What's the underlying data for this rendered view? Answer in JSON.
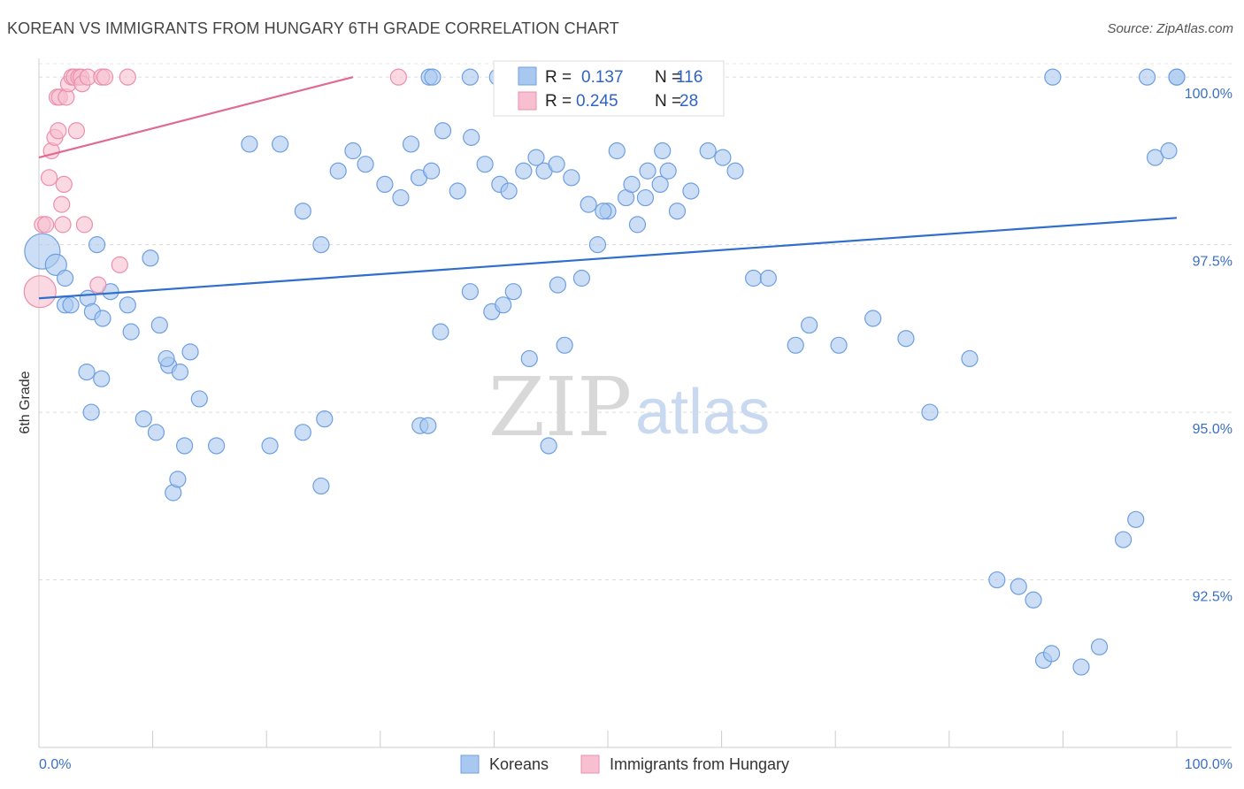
{
  "header": {
    "title": "KOREAN VS IMMIGRANTS FROM HUNGARY 6TH GRADE CORRELATION CHART",
    "source": "Source: ZipAtlas.com"
  },
  "watermark": {
    "zip": "ZIP",
    "atlas": "atlas"
  },
  "stats": {
    "r_label": "R =",
    "n_label": "N =",
    "rows": [
      {
        "r": "0.137",
        "n": "116"
      },
      {
        "r": "0.245",
        "n": "28"
      }
    ]
  },
  "chart_data": {
    "type": "scatter",
    "title": "KOREAN VS IMMIGRANTS FROM HUNGARY 6TH GRADE CORRELATION CHART",
    "ylabel": "6th Grade",
    "xlim": [
      0,
      100
    ],
    "ylim": [
      90.2,
      100.5
    ],
    "x_tick_labels": [
      "0.0%",
      "100.0%"
    ],
    "y_ticks": [
      92.5,
      95.0,
      97.5,
      100.0
    ],
    "y_tick_labels": [
      "92.5%",
      "95.0%",
      "97.5%",
      "100.0%"
    ],
    "grid": "horizontal dashed",
    "legend_position": "bottom-center",
    "series": [
      {
        "name": "Koreans",
        "color": "#a9c8f0",
        "stroke": "#6f9fe0",
        "trend_color": "#2f6fcb",
        "trend": [
          [
            0,
            96.7
          ],
          [
            100,
            97.9
          ]
        ],
        "points": [
          [
            0.3,
            97.4
          ],
          [
            1.5,
            97.2
          ],
          [
            2.3,
            97.0
          ],
          [
            2.3,
            96.6
          ],
          [
            2.8,
            96.6
          ],
          [
            4.3,
            96.7
          ],
          [
            4.7,
            96.5
          ],
          [
            5.6,
            96.4
          ],
          [
            5.1,
            97.5
          ],
          [
            6.3,
            96.8
          ],
          [
            7.8,
            96.6
          ],
          [
            8.1,
            96.2
          ],
          [
            9.8,
            97.3
          ],
          [
            10.6,
            96.3
          ],
          [
            11.4,
            95.7
          ],
          [
            11.2,
            95.8
          ],
          [
            12.4,
            95.6
          ],
          [
            13.3,
            95.9
          ],
          [
            4.2,
            95.6
          ],
          [
            5.5,
            95.5
          ],
          [
            4.6,
            95.0
          ],
          [
            9.2,
            94.9
          ],
          [
            10.3,
            94.7
          ],
          [
            12.8,
            94.5
          ],
          [
            11.8,
            93.8
          ],
          [
            12.2,
            94.0
          ],
          [
            14.1,
            95.2
          ],
          [
            15.6,
            94.5
          ],
          [
            20.3,
            94.5
          ],
          [
            23.2,
            94.7
          ],
          [
            24.8,
            93.9
          ],
          [
            25.1,
            94.9
          ],
          [
            33.5,
            94.8
          ],
          [
            34.2,
            94.8
          ],
          [
            35.3,
            96.2
          ],
          [
            37.9,
            96.8
          ],
          [
            39.8,
            96.5
          ],
          [
            40.8,
            96.6
          ],
          [
            41.7,
            96.8
          ],
          [
            43.1,
            95.8
          ],
          [
            44.8,
            94.5
          ],
          [
            45.6,
            96.9
          ],
          [
            46.2,
            96.0
          ],
          [
            47.7,
            97.0
          ],
          [
            49.1,
            97.5
          ],
          [
            50.0,
            98.0
          ],
          [
            51.6,
            98.2
          ],
          [
            52.6,
            97.8
          ],
          [
            53.3,
            98.2
          ],
          [
            54.6,
            98.4
          ],
          [
            55.3,
            98.6
          ],
          [
            56.1,
            98.0
          ],
          [
            57.3,
            98.3
          ],
          [
            58.8,
            98.9
          ],
          [
            60.1,
            98.8
          ],
          [
            61.2,
            98.6
          ],
          [
            62.8,
            97.0
          ],
          [
            64.1,
            97.0
          ],
          [
            66.5,
            96.0
          ],
          [
            67.7,
            96.3
          ],
          [
            70.3,
            96.0
          ],
          [
            73.3,
            96.4
          ],
          [
            76.2,
            96.1
          ],
          [
            78.3,
            95.0
          ],
          [
            81.8,
            95.8
          ],
          [
            84.2,
            92.5
          ],
          [
            86.1,
            92.4
          ],
          [
            87.4,
            92.2
          ],
          [
            88.3,
            91.3
          ],
          [
            89.0,
            91.4
          ],
          [
            91.6,
            91.2
          ],
          [
            93.2,
            91.5
          ],
          [
            95.3,
            93.1
          ],
          [
            96.4,
            93.4
          ],
          [
            98.1,
            98.8
          ],
          [
            99.3,
            98.9
          ],
          [
            100.0,
            100.0
          ],
          [
            18.5,
            99.0
          ],
          [
            21.2,
            99.0
          ],
          [
            23.2,
            98.0
          ],
          [
            24.8,
            97.5
          ],
          [
            26.3,
            98.6
          ],
          [
            27.6,
            98.9
          ],
          [
            28.7,
            98.7
          ],
          [
            30.4,
            98.4
          ],
          [
            31.8,
            98.2
          ],
          [
            32.7,
            99.0
          ],
          [
            33.4,
            98.5
          ],
          [
            34.5,
            98.6
          ],
          [
            35.5,
            99.2
          ],
          [
            36.8,
            98.3
          ],
          [
            38.0,
            99.1
          ],
          [
            39.2,
            98.7
          ],
          [
            40.5,
            98.4
          ],
          [
            41.3,
            98.3
          ],
          [
            42.6,
            98.6
          ],
          [
            43.7,
            98.8
          ],
          [
            44.4,
            98.6
          ],
          [
            45.5,
            98.7
          ],
          [
            46.8,
            98.5
          ],
          [
            48.3,
            98.1
          ],
          [
            49.6,
            98.0
          ],
          [
            50.8,
            98.9
          ],
          [
            52.1,
            98.4
          ],
          [
            53.5,
            98.6
          ],
          [
            54.8,
            98.9
          ],
          [
            34.3,
            100.0
          ],
          [
            34.6,
            100.0
          ],
          [
            37.9,
            100.0
          ],
          [
            44.8,
            100.0
          ],
          [
            40.3,
            100.0
          ],
          [
            57.2,
            100.0
          ],
          [
            89.1,
            100.0
          ],
          [
            97.4,
            100.0
          ],
          [
            100.0,
            100.0
          ]
        ]
      },
      {
        "name": "Immigrants from Hungary",
        "color": "#f7bfd0",
        "stroke": "#ec8fac",
        "trend_color": "#e06a94",
        "trend": [
          [
            0,
            98.8
          ],
          [
            27.6,
            100.0
          ]
        ],
        "points": [
          [
            0.1,
            96.8
          ],
          [
            0.3,
            97.8
          ],
          [
            0.6,
            97.8
          ],
          [
            0.9,
            98.5
          ],
          [
            1.1,
            98.9
          ],
          [
            1.4,
            99.1
          ],
          [
            1.6,
            99.7
          ],
          [
            1.7,
            99.2
          ],
          [
            1.8,
            99.7
          ],
          [
            2.0,
            98.1
          ],
          [
            2.1,
            97.8
          ],
          [
            2.2,
            98.4
          ],
          [
            2.4,
            99.7
          ],
          [
            2.6,
            99.9
          ],
          [
            2.9,
            100.0
          ],
          [
            3.1,
            100.0
          ],
          [
            3.3,
            99.2
          ],
          [
            3.5,
            100.0
          ],
          [
            3.7,
            100.0
          ],
          [
            3.8,
            99.9
          ],
          [
            4.0,
            97.8
          ],
          [
            4.3,
            100.0
          ],
          [
            5.2,
            96.9
          ],
          [
            5.5,
            100.0
          ],
          [
            5.8,
            100.0
          ],
          [
            7.1,
            97.2
          ],
          [
            7.8,
            100.0
          ],
          [
            31.6,
            100.0
          ]
        ]
      }
    ]
  }
}
